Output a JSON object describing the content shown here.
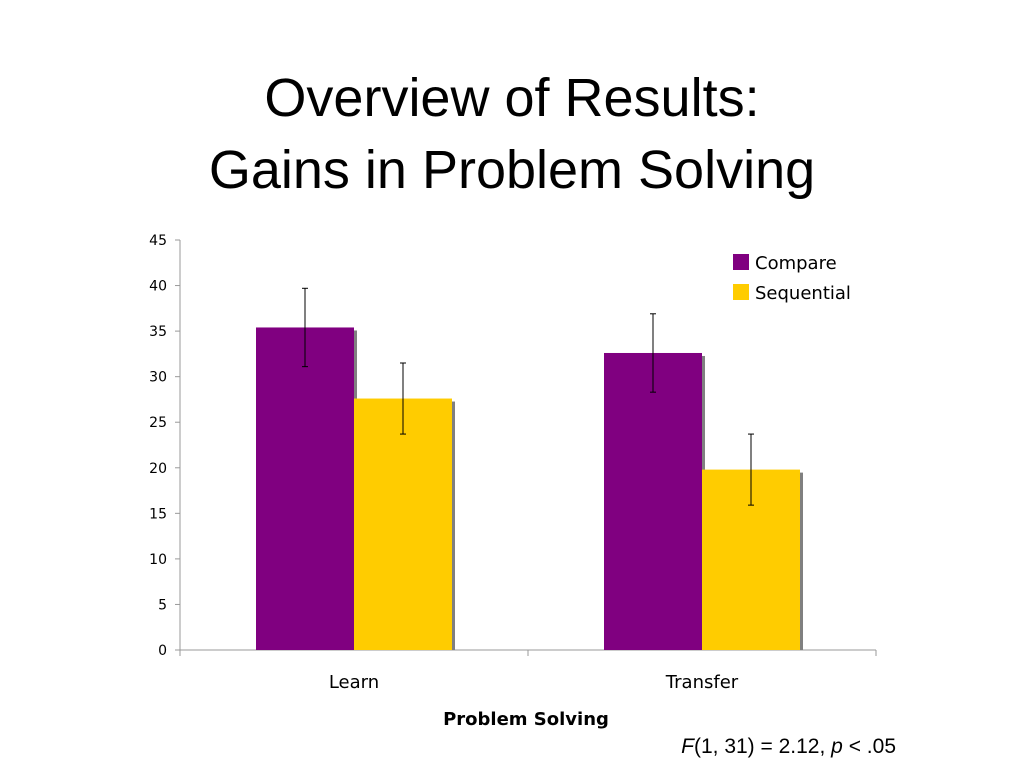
{
  "slide": {
    "title_line1": "Overview of Results:",
    "title_line2": "Gains in Problem Solving",
    "stat_f": "F",
    "stat_mid": "(1, 31) = 2.12,",
    "stat_p": "p",
    "stat_end": "< .05"
  },
  "chart_data": {
    "type": "bar",
    "title": "",
    "xlabel": "Problem Solving",
    "ylabel": "",
    "categories": [
      "Learn",
      "Transfer"
    ],
    "ylim": [
      0,
      45
    ],
    "yticks": [
      0,
      5,
      10,
      15,
      20,
      25,
      30,
      35,
      40,
      45
    ],
    "grid": false,
    "legend_position": "top-right",
    "series": [
      {
        "name": "Compare",
        "color": "#800080",
        "values": [
          35.4,
          32.6
        ],
        "error": [
          4.3,
          4.3
        ]
      },
      {
        "name": "Sequential",
        "color": "#FFCC00",
        "values": [
          27.6,
          19.8
        ],
        "error": [
          3.9,
          3.9
        ]
      }
    ]
  }
}
